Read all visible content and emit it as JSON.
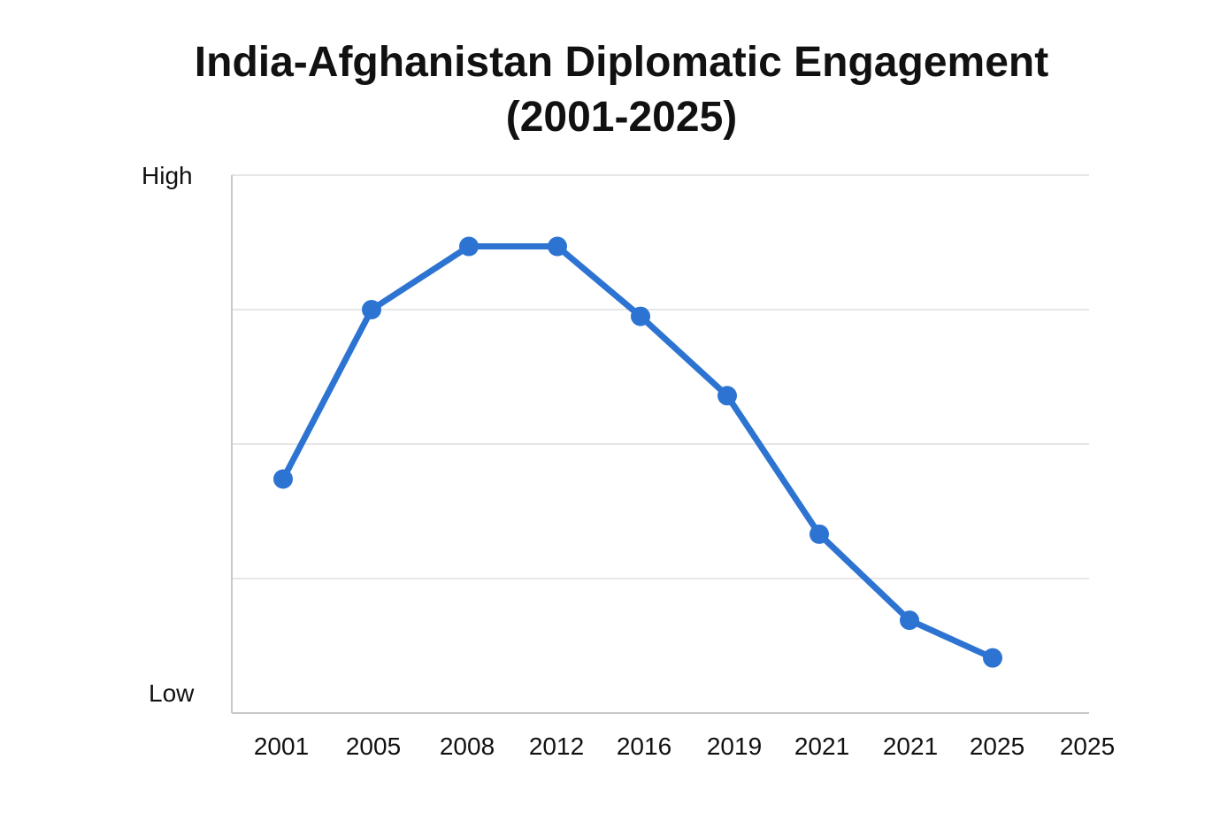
{
  "title": {
    "line1": "India-Afghanistan Diplomatic Engagement",
    "line2": "(2001-2025)"
  },
  "axes": {
    "y_high_label": "High",
    "y_low_label": "Low",
    "x_ticks": [
      "2001",
      "2005",
      "2008",
      "2012",
      "2016",
      "2019",
      "2021",
      "2021",
      "2025",
      "2025"
    ]
  },
  "colors": {
    "line": "#2D74D2",
    "grid": "#DDDDDD",
    "axis": "#C8C8C8",
    "text": "#111111"
  },
  "chart_data": {
    "type": "line",
    "title": "India-Afghanistan Diplomatic Engagement (2001-2025)",
    "xlabel": "",
    "ylabel": "",
    "categories": [
      "2001",
      "2005",
      "2008",
      "2012",
      "2016",
      "2019",
      "2021",
      "2021",
      "2025",
      "2025"
    ],
    "series": [
      {
        "name": "Diplomatic Engagement",
        "x": [
          "2001",
          "2005",
          "2008",
          "2012",
          "2016",
          "2019",
          "2021",
          "2021",
          "2025"
        ],
        "values": [
          1.74,
          3.0,
          3.47,
          3.47,
          2.95,
          2.36,
          1.33,
          0.69,
          0.41
        ]
      }
    ],
    "ylim": [
      0,
      4
    ],
    "y_tick_labels": {
      "0": "Low",
      "4": "High"
    },
    "grid": true,
    "gridlines_y": [
      1,
      2,
      3,
      4
    ],
    "legend": null
  }
}
